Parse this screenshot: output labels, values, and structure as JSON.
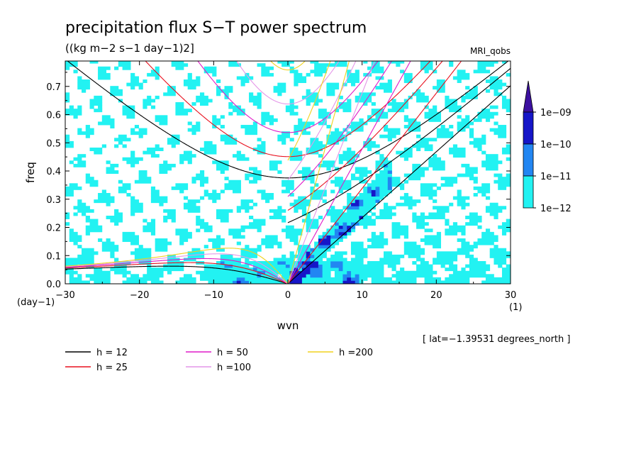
{
  "chart_data": {
    "type": "heatmap",
    "title": "precipitation flux S−T power spectrum",
    "subtitle": "((kg m−2 s−1 day−1)2]",
    "model_label": "MRI_qobs",
    "xlabel": "wvn",
    "ylabel": "freq",
    "x_unit": "(1)",
    "y_unit": "(day−1)",
    "xlim": [
      -30,
      30
    ],
    "ylim": [
      0,
      0.79
    ],
    "x_ticks": [
      -30,
      -20,
      -10,
      0,
      10,
      20,
      30
    ],
    "x_tick_labels": [
      "−30",
      "−20",
      "−10",
      "0",
      "10",
      "20",
      "30"
    ],
    "y_ticks": [
      0,
      0.1,
      0.2,
      0.3,
      0.4,
      0.5,
      0.6,
      0.7
    ],
    "y_tick_labels": [
      "0.0",
      "0.1",
      "0.2",
      "0.3",
      "0.4",
      "0.5",
      "0.6",
      "0.7"
    ],
    "colorbar": {
      "levels": [
        "1e−12",
        "1e−11",
        "1e−10",
        "1e−09"
      ],
      "colors": [
        "#22f2f2",
        "#2286f2",
        "#1616c8",
        "#3c10a0"
      ],
      "extend": "max"
    },
    "dispersion_curves": [
      {
        "label": "h = 12",
        "h": 12,
        "color": "#000000"
      },
      {
        "label": "h = 25",
        "h": 25,
        "color": "#e8101e"
      },
      {
        "label": "h = 50",
        "h": 50,
        "color": "#e01cc8"
      },
      {
        "label": "h =100",
        "h": 100,
        "color": "#e496e8"
      },
      {
        "label": "h =200",
        "h": 200,
        "color": "#f0d21e"
      }
    ],
    "annotation": "[ lat=−1.39531 degrees_north ]"
  }
}
